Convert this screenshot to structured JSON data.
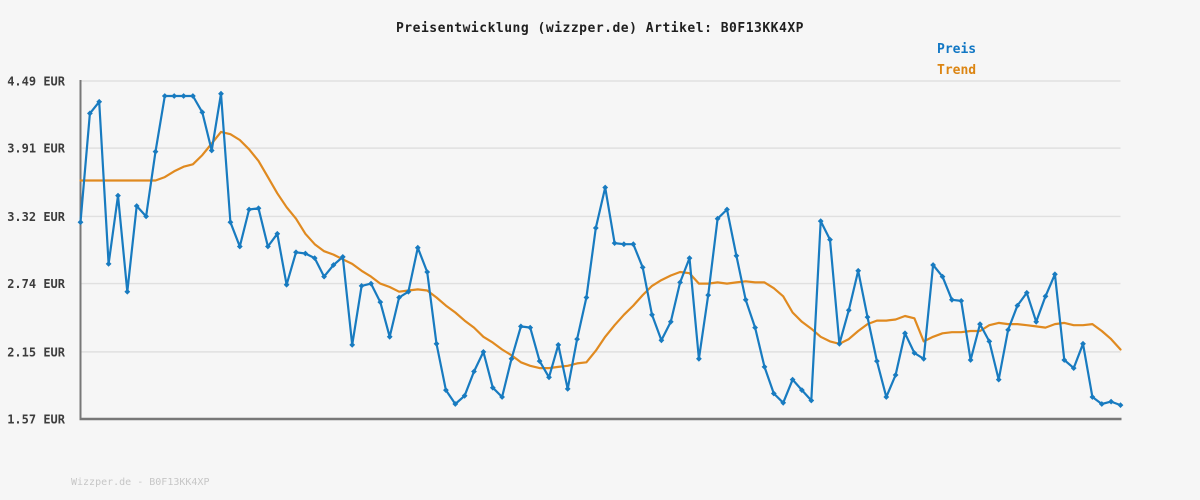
{
  "title": "Preisentwicklung (wizzper.de) Artikel: B0F13KK4XP",
  "footer": "Wizzper.de - B0F13KK4XP",
  "colors": {
    "background": "#f6f6f6",
    "grid": "#e0e0e0",
    "axis": "#787878",
    "title_text": "#1f1f1f",
    "tick_text": "#3d3d3d",
    "footer_text": "#c6c6c6",
    "preis": "#187bc0",
    "trend": "#e08a20"
  },
  "chart_data": {
    "type": "line",
    "title": "Preisentwicklung (wizzper.de) Artikel: B0F13KK4XP",
    "xlabel": "",
    "ylabel": "",
    "ylim": [
      1.57,
      4.49
    ],
    "grid": "horizontal-only",
    "legend_position": "top-right",
    "x_tick_labels_visible": false,
    "y_ticks": [
      {
        "label": "4.49 EUR",
        "value": 4.49
      },
      {
        "label": "3.91 EUR",
        "value": 3.91
      },
      {
        "label": "3.32 EUR",
        "value": 3.32
      },
      {
        "label": "2.74 EUR",
        "value": 2.74
      },
      {
        "label": "2.15 EUR",
        "value": 2.15
      },
      {
        "label": "1.57 EUR",
        "value": 1.57
      }
    ],
    "unit": "EUR",
    "x_count": 112,
    "series": [
      {
        "name": "Preis",
        "color": "#187bc0",
        "marker": "diamond",
        "values": [
          3.27,
          4.21,
          4.31,
          2.91,
          3.5,
          2.67,
          3.41,
          3.32,
          3.88,
          4.36,
          4.36,
          4.36,
          4.36,
          4.22,
          3.89,
          4.38,
          3.27,
          3.06,
          3.38,
          3.39,
          3.06,
          3.17,
          2.73,
          3.01,
          3.0,
          2.96,
          2.8,
          2.9,
          2.97,
          2.21,
          2.72,
          2.74,
          2.58,
          2.28,
          2.62,
          2.67,
          3.05,
          2.84,
          2.22,
          1.82,
          1.7,
          1.77,
          1.98,
          2.15,
          1.84,
          1.76,
          2.09,
          2.37,
          2.36,
          2.07,
          1.93,
          2.21,
          1.83,
          2.26,
          2.62,
          3.22,
          3.57,
          3.09,
          3.08,
          3.08,
          2.88,
          2.47,
          2.25,
          2.41,
          2.75,
          2.96,
          2.09,
          2.64,
          3.3,
          3.38,
          2.98,
          2.6,
          2.36,
          2.02,
          1.79,
          1.71,
          1.91,
          1.82,
          1.73,
          3.28,
          3.12,
          2.22,
          2.51,
          2.85,
          2.45,
          2.07,
          1.76,
          1.95,
          2.31,
          2.14,
          2.09,
          2.9,
          2.8,
          2.6,
          2.59,
          2.08,
          2.39,
          2.24,
          1.91,
          2.34,
          2.55,
          2.66,
          2.41,
          2.63,
          2.82,
          2.08,
          2.01,
          2.22,
          1.76,
          1.7,
          1.72,
          1.69
        ]
      },
      {
        "name": "Trend",
        "color": "#e08a20",
        "marker": "none",
        "values": [
          3.63,
          3.63,
          3.63,
          3.63,
          3.63,
          3.63,
          3.63,
          3.63,
          3.63,
          3.66,
          3.71,
          3.75,
          3.77,
          3.85,
          3.95,
          4.05,
          4.03,
          3.98,
          3.9,
          3.8,
          3.66,
          3.52,
          3.4,
          3.3,
          3.17,
          3.08,
          3.02,
          2.99,
          2.95,
          2.91,
          2.85,
          2.8,
          2.74,
          2.71,
          2.67,
          2.68,
          2.69,
          2.68,
          2.62,
          2.55,
          2.49,
          2.42,
          2.36,
          2.28,
          2.23,
          2.17,
          2.12,
          2.06,
          2.03,
          2.01,
          2.01,
          2.02,
          2.03,
          2.05,
          2.06,
          2.16,
          2.28,
          2.38,
          2.47,
          2.55,
          2.64,
          2.72,
          2.77,
          2.81,
          2.84,
          2.83,
          2.74,
          2.74,
          2.75,
          2.74,
          2.75,
          2.76,
          2.75,
          2.75,
          2.7,
          2.63,
          2.49,
          2.41,
          2.35,
          2.28,
          2.24,
          2.22,
          2.26,
          2.33,
          2.39,
          2.42,
          2.42,
          2.43,
          2.46,
          2.44,
          2.24,
          2.28,
          2.31,
          2.32,
          2.32,
          2.33,
          2.33,
          2.38,
          2.4,
          2.39,
          2.39,
          2.38,
          2.37,
          2.36,
          2.39,
          2.4,
          2.38,
          2.38,
          2.39,
          2.33,
          2.26,
          2.17
        ]
      }
    ]
  },
  "legend": {
    "preis_label": "Preis",
    "trend_label": "Trend"
  }
}
